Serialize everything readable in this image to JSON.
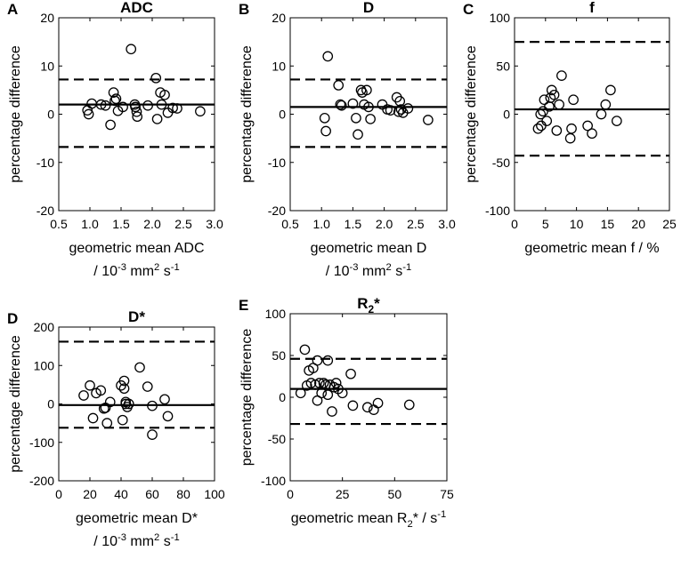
{
  "panels": [
    {
      "letter": "A",
      "title": "ADC",
      "xlabel": [
        "geometric mean ADC",
        "/ 10^-3 mm^2 s^-1"
      ],
      "ylabel": "percentage difference",
      "xlim": [
        0.5,
        3.0
      ],
      "ylim": [
        -20,
        20
      ],
      "xticks": [
        0.5,
        1.0,
        1.5,
        2.0,
        2.5,
        3.0
      ],
      "xtick_labels": [
        "0.5",
        "1.0",
        "1.5",
        "2.0",
        "2.5",
        "3.0"
      ],
      "yticks": [
        -20,
        -10,
        0,
        10,
        20
      ],
      "ytick_labels": [
        "-20",
        "-10",
        "0",
        "10",
        "20"
      ]
    },
    {
      "letter": "B",
      "title": "D",
      "xlabel": [
        "geometric mean D",
        "/ 10^-3 mm^2 s^-1"
      ],
      "ylabel": "percentage difference",
      "xlim": [
        0.5,
        3.0
      ],
      "ylim": [
        -20,
        20
      ],
      "xticks": [
        0.5,
        1.0,
        1.5,
        2.0,
        2.5,
        3.0
      ],
      "xtick_labels": [
        "0.5",
        "1.0",
        "1.5",
        "2.0",
        "2.5",
        "3.0"
      ],
      "yticks": [
        -20,
        -10,
        0,
        10,
        20
      ],
      "ytick_labels": [
        "-20",
        "-10",
        "0",
        "10",
        "20"
      ]
    },
    {
      "letter": "C",
      "title": "f",
      "xlabel": [
        "geometric mean f / %"
      ],
      "ylabel": "percentage difference",
      "xlim": [
        0,
        25
      ],
      "ylim": [
        -100,
        100
      ],
      "xticks": [
        0,
        5,
        10,
        15,
        20,
        25
      ],
      "xtick_labels": [
        "0",
        "5",
        "10",
        "15",
        "20",
        "25"
      ],
      "yticks": [
        -100,
        -50,
        0,
        50,
        100
      ],
      "ytick_labels": [
        "-100",
        "-50",
        "0",
        "50",
        "100"
      ]
    },
    {
      "letter": "D",
      "title": "D*",
      "xlabel": [
        "geometric mean D*",
        "/ 10^-3 mm^2 s^-1"
      ],
      "ylabel": "percentage difference",
      "xlim": [
        0,
        100
      ],
      "ylim": [
        -200,
        200
      ],
      "xticks": [
        0,
        20,
        40,
        60,
        80,
        100
      ],
      "xtick_labels": [
        "0",
        "20",
        "40",
        "60",
        "80",
        "100"
      ],
      "yticks": [
        -200,
        -100,
        0,
        100,
        200
      ],
      "ytick_labels": [
        "-200",
        "-100",
        "0",
        "100",
        "200"
      ]
    },
    {
      "letter": "E",
      "title": "R2*",
      "xlabel": [
        "geometric mean R2* / s^-1"
      ],
      "ylabel": "percentage difference",
      "xlim": [
        0,
        75
      ],
      "ylim": [
        -100,
        100
      ],
      "xticks": [
        0,
        25,
        50,
        75
      ],
      "xtick_labels": [
        "0",
        "25",
        "50",
        "75"
      ],
      "yticks": [
        -100,
        -50,
        0,
        50,
        100
      ],
      "ytick_labels": [
        "-100",
        "-50",
        "0",
        "50",
        "100"
      ]
    }
  ],
  "chart_data": [
    {
      "type": "scatter",
      "title": "ADC",
      "xlabel": "geometric mean ADC / 10^-3 mm^2 s^-1",
      "ylabel": "percentage difference",
      "xlim": [
        0.5,
        3.0
      ],
      "ylim": [
        -20,
        20
      ],
      "mean": 2.0,
      "loa_upper": 7.2,
      "loa_lower": -6.8,
      "x": [
        0.96,
        0.98,
        1.03,
        1.18,
        1.25,
        1.33,
        1.38,
        1.4,
        1.42,
        1.45,
        1.53,
        1.66,
        1.72,
        1.73,
        1.75,
        1.76,
        1.93,
        2.06,
        2.08,
        2.13,
        2.15,
        2.2,
        2.25,
        2.33,
        2.4,
        2.77
      ],
      "y": [
        0.8,
        0.0,
        2.2,
        2.0,
        1.8,
        -2.2,
        4.5,
        2.8,
        3.2,
        0.7,
        1.5,
        13.5,
        2.0,
        1.5,
        0.5,
        -0.5,
        1.8,
        7.5,
        -1.0,
        4.5,
        2.0,
        4.0,
        0.3,
        1.3,
        1.2,
        0.6
      ]
    },
    {
      "type": "scatter",
      "title": "D",
      "xlabel": "geometric mean D / 10^-3 mm^2 s^-1",
      "ylabel": "percentage difference",
      "xlim": [
        0.5,
        3.0
      ],
      "ylim": [
        -20,
        20
      ],
      "mean": 1.5,
      "loa_upper": 7.2,
      "loa_lower": -6.8,
      "x": [
        1.05,
        1.07,
        1.1,
        1.27,
        1.3,
        1.32,
        1.5,
        1.55,
        1.58,
        1.63,
        1.65,
        1.68,
        1.72,
        1.75,
        1.78,
        1.97,
        2.05,
        2.1,
        2.2,
        2.23,
        2.25,
        2.27,
        2.3,
        2.38,
        2.7
      ],
      "y": [
        -0.8,
        -3.5,
        12.0,
        6.0,
        2.0,
        1.8,
        2.2,
        -0.8,
        -4.2,
        5.0,
        4.5,
        2.0,
        5.0,
        1.5,
        -1.0,
        2.0,
        1.0,
        0.8,
        3.5,
        0.5,
        2.7,
        1.0,
        0.3,
        1.2,
        -1.2
      ]
    },
    {
      "type": "scatter",
      "title": "f",
      "xlabel": "geometric mean f / %",
      "ylabel": "percentage difference",
      "xlim": [
        0,
        25
      ],
      "ylim": [
        -100,
        100
      ],
      "mean": 5,
      "loa_upper": 75,
      "loa_lower": -43,
      "x": [
        3.8,
        4.2,
        4.3,
        4.6,
        4.8,
        5.2,
        5.6,
        5.8,
        6.0,
        6.4,
        6.8,
        7.2,
        7.6,
        9.0,
        9.2,
        9.5,
        11.8,
        12.5,
        14.0,
        14.7,
        15.5,
        16.5
      ],
      "y": [
        -15,
        0,
        -12,
        3,
        15,
        -7,
        8,
        17,
        25,
        20,
        -17,
        10,
        40,
        -25,
        -15,
        15,
        -12,
        -20,
        0,
        10,
        25,
        -7
      ]
    },
    {
      "type": "scatter",
      "title": "D*",
      "xlabel": "geometric mean D* / 10^-3 mm^2 s^-1",
      "ylabel": "percentage difference",
      "xlim": [
        0,
        100
      ],
      "ylim": [
        -200,
        200
      ],
      "mean": -3,
      "loa_upper": 162,
      "loa_lower": -62,
      "x": [
        16,
        20,
        22,
        24,
        27,
        29,
        30,
        31,
        33,
        40,
        41,
        42,
        42,
        43,
        43,
        44,
        45,
        52,
        57,
        60,
        60,
        68,
        70
      ],
      "y": [
        22,
        48,
        -37,
        28,
        35,
        -12,
        -10,
        -50,
        5,
        48,
        -42,
        40,
        60,
        5,
        0,
        -8,
        0,
        95,
        45,
        -5,
        -80,
        12,
        -32
      ]
    },
    {
      "type": "scatter",
      "title": "R2*",
      "xlabel": "geometric mean R2* / s^-1",
      "ylabel": "percentage difference",
      "xlim": [
        0,
        75
      ],
      "ylim": [
        -100,
        100
      ],
      "mean": 10,
      "loa_upper": 46,
      "loa_lower": -32,
      "x": [
        5,
        7,
        8,
        9,
        10,
        11,
        12,
        13,
        13,
        14,
        15,
        16,
        17,
        18,
        18,
        19,
        20,
        21,
        22,
        23,
        25,
        29,
        30,
        37,
        40,
        42,
        57
      ],
      "y": [
        5,
        57,
        14,
        32,
        17,
        35,
        15,
        -4,
        44,
        17,
        5,
        17,
        15,
        44,
        3,
        15,
        -17,
        12,
        17,
        10,
        5,
        28,
        -10,
        -12,
        -15,
        -7,
        -9
      ]
    }
  ]
}
